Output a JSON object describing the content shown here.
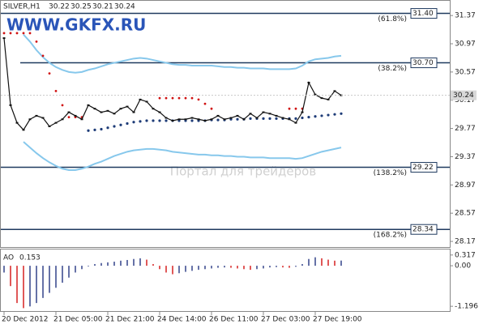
{
  "chart_data": [
    {
      "type": "line",
      "title": "SILVER,H1",
      "ohlc": [
        30.22,
        30.25,
        30.21,
        30.24
      ],
      "watermark": "WWW.GKFX.RU",
      "watermark2": "Портал для трейдеров",
      "last_price": 30.24,
      "categories": [
        "20 Dec 2012",
        null,
        null,
        null,
        null,
        null,
        null,
        null,
        "21 Dec 05:00",
        null,
        null,
        null,
        null,
        null,
        null,
        null,
        "21 Dec 21:00",
        null,
        null,
        null,
        null,
        null,
        null,
        null,
        "24 Dec 14:00",
        null,
        null,
        null,
        null,
        null,
        null,
        null,
        "26 Dec 11:00",
        null,
        null,
        null,
        null,
        null,
        null,
        null,
        "27 Dec 03:00",
        null,
        null,
        null,
        null,
        null,
        null,
        null,
        "27 Dec 19:00",
        null,
        null,
        null,
        null
      ],
      "ylim": [
        28.09,
        31.59
      ],
      "yticks": [
        31.37,
        30.97,
        30.57,
        30.17,
        29.77,
        29.37,
        28.97,
        28.57,
        28.17
      ],
      "levels": [
        {
          "price": {
            "value": 31.4,
            "label": "31.40"
          },
          "ratio": "(61.8%)"
        },
        {
          "price": {
            "value": 30.7,
            "label": "30.70"
          },
          "ratio": "(38.2%)"
        },
        {
          "price": 29.22,
          "ratio": "(138.2%)"
        },
        {
          "price": 28.34,
          "ratio": "(168.2%)"
        }
      ],
      "level_color": "#1f3a5f",
      "series": [
        {
          "style": "line",
          "color": "#87c8ec",
          "values": [
            null,
            null,
            null,
            31.1,
            31.0,
            30.88,
            30.78,
            30.7,
            30.64,
            30.6,
            30.57,
            30.56,
            30.57,
            30.6,
            30.62,
            30.65,
            30.68,
            30.7,
            30.72,
            30.74,
            30.76,
            30.77,
            30.76,
            30.74,
            30.72,
            30.7,
            30.68,
            30.67,
            30.67,
            30.66,
            30.66,
            30.66,
            30.66,
            30.65,
            30.64,
            30.64,
            30.63,
            30.63,
            30.62,
            30.62,
            30.62,
            30.61,
            30.61,
            30.61,
            30.61,
            30.62,
            30.66,
            30.72,
            30.75,
            30.76,
            30.77,
            30.79,
            30.8
          ]
        },
        {
          "style": "line",
          "color": "#87c8ec",
          "values": [
            null,
            null,
            null,
            29.58,
            29.5,
            29.42,
            29.35,
            29.29,
            29.24,
            29.2,
            29.18,
            29.18,
            29.2,
            29.23,
            29.27,
            29.3,
            29.34,
            29.38,
            29.41,
            29.44,
            29.46,
            29.47,
            29.48,
            29.48,
            29.47,
            29.46,
            29.44,
            29.43,
            29.42,
            29.41,
            29.4,
            29.4,
            29.39,
            29.39,
            29.38,
            29.38,
            29.37,
            29.37,
            29.36,
            29.36,
            29.36,
            29.35,
            29.35,
            29.35,
            29.35,
            29.34,
            29.35,
            29.38,
            29.41,
            29.44,
            29.46,
            29.48,
            29.5
          ]
        },
        {
          "style": "dotted",
          "color": "#1e3c78",
          "values": [
            null,
            null,
            null,
            null,
            null,
            null,
            null,
            null,
            null,
            null,
            null,
            null,
            null,
            29.74,
            29.75,
            29.76,
            29.78,
            29.8,
            29.82,
            29.84,
            29.86,
            29.87,
            29.88,
            29.88,
            29.88,
            29.88,
            29.88,
            29.88,
            29.88,
            29.88,
            29.88,
            29.88,
            29.89,
            29.89,
            29.89,
            29.9,
            29.9,
            29.9,
            29.91,
            29.91,
            29.91,
            29.91,
            29.91,
            29.91,
            29.91,
            29.91,
            29.92,
            29.93,
            29.94,
            29.95,
            29.96,
            29.97,
            29.98
          ]
        },
        {
          "style": "markers",
          "color": "#d01010",
          "values": [
            31.12,
            31.12,
            31.12,
            31.12,
            31.12,
            31.0,
            30.8,
            30.55,
            30.3,
            30.1,
            29.93,
            29.93,
            29.93,
            null,
            null,
            null,
            null,
            null,
            null,
            null,
            null,
            null,
            null,
            null,
            30.2,
            30.2,
            30.2,
            30.2,
            30.2,
            30.2,
            30.18,
            30.12,
            30.05,
            null,
            null,
            null,
            null,
            null,
            null,
            null,
            null,
            null,
            null,
            null,
            30.05,
            30.05,
            30.05,
            null,
            null,
            null,
            null,
            null,
            null
          ]
        },
        {
          "style": "price",
          "color": "#111111",
          "values": [
            31.05,
            30.1,
            29.85,
            29.75,
            29.9,
            29.95,
            29.92,
            29.8,
            29.85,
            29.9,
            30.0,
            29.95,
            29.9,
            30.1,
            30.05,
            30.0,
            30.02,
            29.98,
            30.05,
            30.08,
            30.0,
            30.18,
            30.15,
            30.05,
            30.0,
            29.92,
            29.88,
            29.9,
            29.9,
            29.92,
            29.9,
            29.88,
            29.9,
            29.95,
            29.9,
            29.92,
            29.95,
            29.9,
            29.98,
            29.92,
            30.0,
            29.98,
            29.95,
            29.92,
            29.9,
            29.85,
            30.0,
            30.42,
            30.25,
            30.2,
            30.18,
            30.3,
            30.24
          ]
        }
      ]
    },
    {
      "type": "histogram-ao",
      "title": "AO",
      "last": 0.153,
      "ylim": [
        -1.36,
        0.48
      ],
      "yticks": [
        0.317,
        {
          "value": 0,
          "label": "0.00"
        },
        -1.196
      ],
      "up_color": "#34448a",
      "down_color": "#d62020",
      "values": [
        -0.2,
        -0.6,
        -1.1,
        -1.25,
        -1.2,
        -1.1,
        -0.95,
        -0.8,
        -0.65,
        -0.5,
        -0.35,
        -0.2,
        -0.1,
        -0.02,
        0.05,
        0.08,
        0.1,
        0.12,
        0.15,
        0.17,
        0.2,
        0.22,
        0.18,
        0.05,
        -0.1,
        -0.2,
        -0.25,
        -0.22,
        -0.18,
        -0.15,
        -0.12,
        -0.1,
        -0.08,
        -0.06,
        -0.05,
        -0.06,
        -0.08,
        -0.1,
        -0.12,
        -0.1,
        -0.08,
        -0.05,
        -0.04,
        -0.05,
        -0.06,
        -0.03,
        0.05,
        0.2,
        0.25,
        0.22,
        0.18,
        0.15,
        0.153
      ]
    }
  ]
}
